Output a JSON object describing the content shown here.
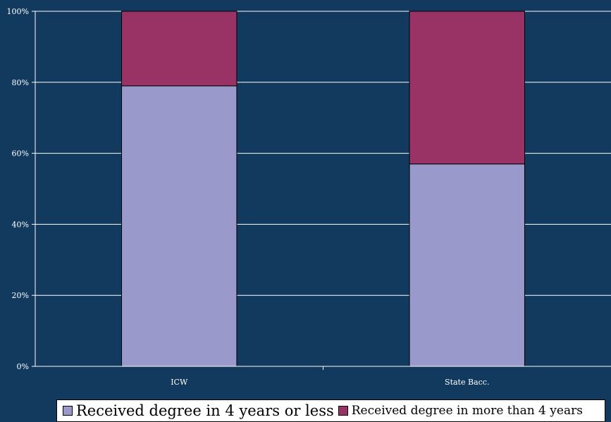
{
  "chart_data": {
    "type": "bar",
    "stacked": true,
    "percent": true,
    "categories": [
      "ICW",
      "State Bacc."
    ],
    "series": [
      {
        "name": "Received degree in 4 years or less",
        "values": [
          79,
          57
        ],
        "color": "#9999cc"
      },
      {
        "name": "Received degree in more than 4 years",
        "values": [
          21,
          43
        ],
        "color": "#993366"
      }
    ],
    "ylim": [
      0,
      100
    ],
    "yticks": [
      "0%",
      "20%",
      "40%",
      "60%",
      "80%",
      "100%"
    ],
    "ytick_values": [
      0,
      20,
      40,
      60,
      80,
      100
    ],
    "grid": true,
    "legend_position": "bottom",
    "background": "#123a5e",
    "grid_color": "#ffffff"
  }
}
